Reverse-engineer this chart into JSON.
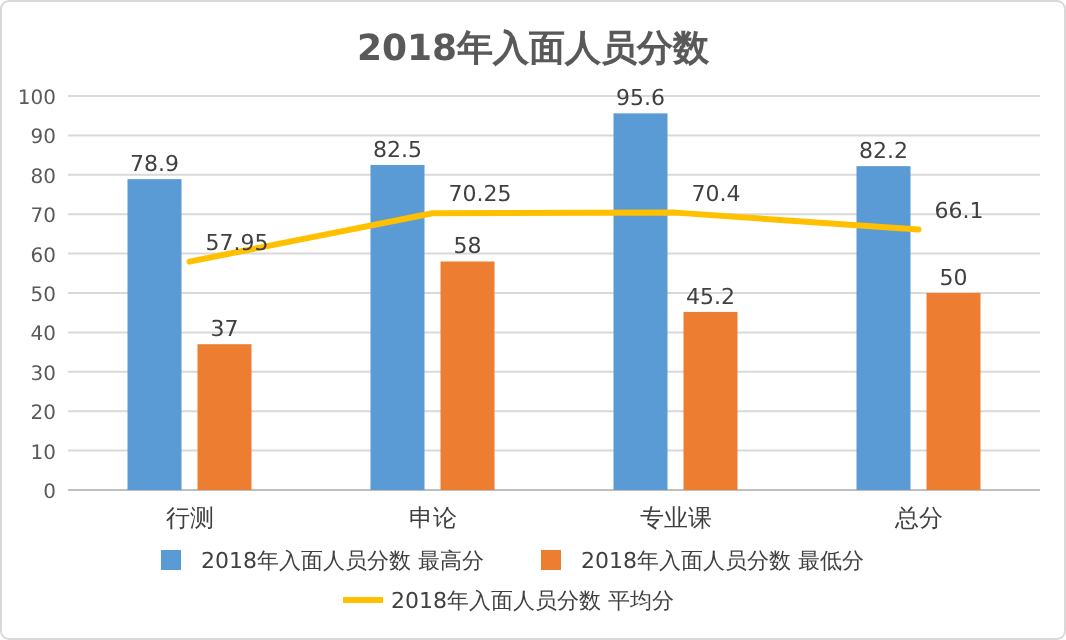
{
  "chart_data": {
    "type": "bar",
    "title": "2018年入面人员分数",
    "categories": [
      "行测",
      "申论",
      "专业课",
      "总分"
    ],
    "series": [
      {
        "name": "2018年入面人员分数 最高分",
        "color": "#5b9bd5",
        "values": [
          78.9,
          82.5,
          95.6,
          82.2
        ]
      },
      {
        "name": "2018年入面人员分数 最低分",
        "color": "#ed7d31",
        "values": [
          37,
          58,
          45.2,
          50
        ]
      },
      {
        "name": "2018年入面人员分数 平均分",
        "type": "line",
        "color": "#ffc000",
        "values": [
          57.95,
          70.25,
          70.4,
          66.1
        ]
      }
    ],
    "ylim": [
      0,
      100
    ],
    "yticks": [
      0,
      10,
      20,
      30,
      40,
      50,
      60,
      70,
      80,
      90,
      100
    ],
    "grid": "y",
    "legend": "bottom",
    "data_labels": true
  }
}
